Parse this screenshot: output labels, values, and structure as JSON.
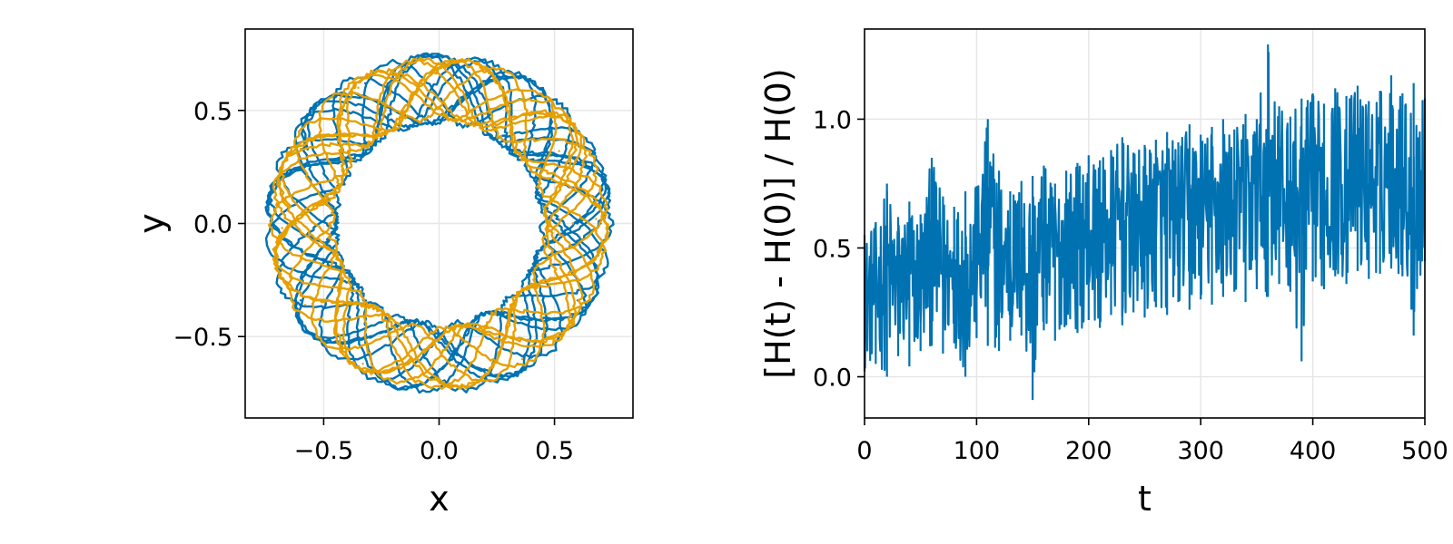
{
  "chart_data": [
    {
      "type": "line",
      "xlabel": "x",
      "ylabel": "y",
      "xlim": [
        -0.84,
        0.84
      ],
      "ylim": [
        -0.86,
        0.86
      ],
      "xticks": [
        -0.5,
        0.0,
        0.5
      ],
      "yticks": [
        -0.5,
        0.0,
        0.5
      ],
      "xtick_labels": [
        "−0.5",
        "0.0",
        "0.5"
      ],
      "ytick_labels": [
        "−0.5",
        "0.0",
        "0.5"
      ],
      "grid": true,
      "legend": "none",
      "description_of_data": "two orbit trajectories forming an annulus, inner radius ~0.45, outer radius ~0.73",
      "series": [
        {
          "color": "#0072b2",
          "ring_inner_radius": 0.43,
          "ring_outer_radius": 0.76,
          "points": [
            [
              0.6,
              0.0
            ],
            [
              0.55,
              0.3
            ],
            [
              0.35,
              0.55
            ],
            [
              0.02,
              0.7
            ],
            [
              -0.32,
              0.62
            ],
            [
              -0.58,
              0.36
            ],
            [
              -0.7,
              0.02
            ],
            [
              -0.6,
              -0.34
            ],
            [
              -0.36,
              -0.6
            ],
            [
              0.0,
              -0.72
            ],
            [
              0.34,
              -0.62
            ],
            [
              0.6,
              -0.34
            ],
            [
              0.7,
              0.0
            ]
          ]
        },
        {
          "color": "#e69f00",
          "ring_inner_radius": 0.45,
          "ring_outer_radius": 0.74,
          "points": [
            [
              0.58,
              0.0
            ],
            [
              0.52,
              0.32
            ],
            [
              0.3,
              0.58
            ],
            [
              -0.02,
              0.68
            ],
            [
              -0.35,
              0.6
            ],
            [
              -0.6,
              0.33
            ],
            [
              -0.68,
              -0.02
            ],
            [
              -0.58,
              -0.36
            ],
            [
              -0.33,
              -0.62
            ],
            [
              0.02,
              -0.7
            ],
            [
              0.36,
              -0.6
            ],
            [
              0.58,
              -0.32
            ],
            [
              0.68,
              0.02
            ]
          ]
        }
      ]
    },
    {
      "type": "line",
      "xlabel": "t",
      "ylabel": "[H(t) - H(0)] / H(0)",
      "xlim": [
        0,
        500
      ],
      "ylim": [
        -0.16,
        1.35
      ],
      "xticks": [
        0,
        100,
        200,
        300,
        400,
        500
      ],
      "yticks": [
        0.0,
        0.5,
        1.0
      ],
      "xtick_labels": [
        "0",
        "100",
        "200",
        "300",
        "400",
        "500"
      ],
      "ytick_labels": [
        "0.0",
        "0.5",
        "1.0"
      ],
      "grid": true,
      "legend": "none",
      "series": [
        {
          "color": "#0072b2",
          "description": "noisy relative energy error: lower envelope rises ~0.1 to ~0.45, upper envelope ~0.6 to ~1.1",
          "x": [
            0,
            10,
            20,
            30,
            40,
            50,
            60,
            70,
            80,
            90,
            100,
            110,
            120,
            130,
            140,
            150,
            160,
            170,
            180,
            190,
            200,
            210,
            220,
            230,
            240,
            250,
            260,
            270,
            280,
            290,
            300,
            310,
            320,
            330,
            340,
            350,
            360,
            370,
            380,
            390,
            400,
            410,
            420,
            430,
            440,
            450,
            460,
            470,
            480,
            490,
            500
          ],
          "y": [
            0.3,
            0.35,
            0.32,
            0.38,
            0.33,
            0.36,
            0.4,
            0.37,
            0.39,
            0.35,
            0.42,
            0.4,
            0.43,
            0.41,
            0.44,
            0.42,
            0.4,
            0.45,
            0.47,
            0.44,
            0.46,
            0.49,
            0.47,
            0.5,
            0.48,
            0.52,
            0.5,
            0.53,
            0.51,
            0.55,
            0.53,
            0.56,
            0.58,
            0.55,
            0.57,
            0.6,
            0.58,
            0.62,
            0.59,
            0.61,
            0.63,
            0.6,
            0.64,
            0.66,
            0.63,
            0.67,
            0.65,
            0.69,
            0.66,
            0.7,
            0.72
          ],
          "lower": [
            0.02,
            0.05,
            0.0,
            0.08,
            0.04,
            0.1,
            0.12,
            0.09,
            0.13,
            0.0,
            0.15,
            0.12,
            0.1,
            0.14,
            0.16,
            -0.09,
            0.18,
            0.14,
            0.2,
            0.17,
            0.22,
            0.19,
            0.24,
            0.2,
            0.25,
            0.23,
            0.27,
            0.24,
            0.29,
            0.26,
            0.3,
            0.28,
            0.31,
            0.33,
            0.29,
            0.34,
            0.31,
            0.36,
            0.33,
            0.06,
            0.37,
            0.34,
            0.39,
            0.36,
            0.41,
            0.38,
            0.4,
            0.42,
            0.39,
            0.16,
            0.45
          ],
          "upper": [
            0.55,
            0.6,
            0.75,
            0.62,
            0.68,
            0.63,
            0.85,
            0.7,
            0.66,
            0.72,
            0.74,
            1.0,
            0.8,
            0.72,
            0.76,
            0.78,
            0.82,
            0.75,
            0.8,
            0.83,
            0.86,
            0.84,
            0.88,
            0.93,
            0.87,
            0.9,
            0.92,
            0.95,
            0.91,
            0.98,
            0.94,
            0.97,
            1.0,
            0.96,
            1.02,
            1.0,
            1.29,
            1.05,
            1.01,
            1.08,
            1.1,
            1.06,
            1.12,
            1.09,
            1.13,
            1.07,
            1.11,
            1.17,
            1.1,
            1.14,
            1.08
          ]
        }
      ]
    }
  ]
}
